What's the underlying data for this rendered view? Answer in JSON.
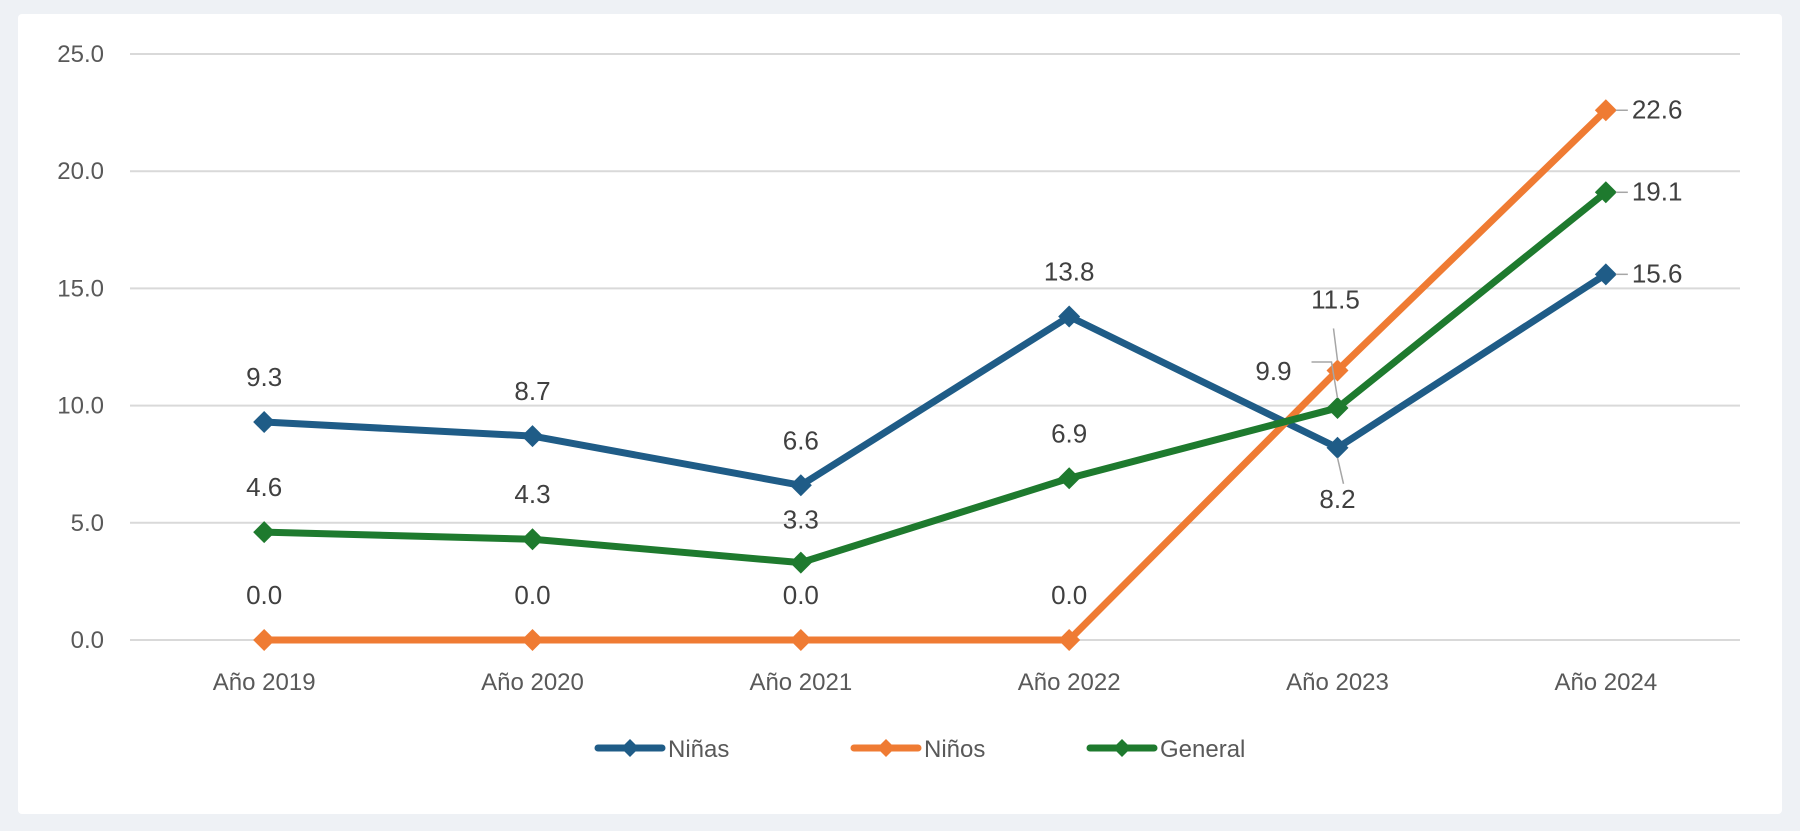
{
  "chart_data": {
    "type": "line",
    "title": "",
    "xlabel": "",
    "ylabel": "",
    "categories": [
      "Año 2019",
      "Año 2020",
      "Año 2021",
      "Año 2022",
      "Año 2023",
      "Año 2024"
    ],
    "ylim": [
      0,
      25
    ],
    "yticks": [
      0,
      5,
      10,
      15,
      20,
      25
    ],
    "ytick_labels": [
      "0.0",
      "5.0",
      "10.0",
      "15.0",
      "20.0",
      "25.0"
    ],
    "grid": true,
    "legend_position": "bottom",
    "marker": "diamond",
    "series": [
      {
        "name": "Niñas",
        "color": "#1f5c87",
        "values": [
          9.3,
          8.7,
          6.6,
          13.8,
          8.2,
          15.6
        ],
        "labels": [
          "9.3",
          "8.7",
          "6.6",
          "13.8",
          "8.2",
          "15.6"
        ]
      },
      {
        "name": "Niños",
        "color": "#ef7b33",
        "values": [
          0.0,
          0.0,
          0.0,
          0.0,
          11.5,
          22.6
        ],
        "labels": [
          "0.0",
          "0.0",
          "0.0",
          "0.0",
          "11.5",
          "22.6"
        ]
      },
      {
        "name": "General",
        "color": "#1e7a2e",
        "values": [
          4.6,
          4.3,
          3.3,
          6.9,
          9.9,
          19.1
        ],
        "labels": [
          "4.6",
          "4.3",
          "3.3",
          "6.9",
          "9.9",
          "19.1"
        ]
      }
    ]
  }
}
